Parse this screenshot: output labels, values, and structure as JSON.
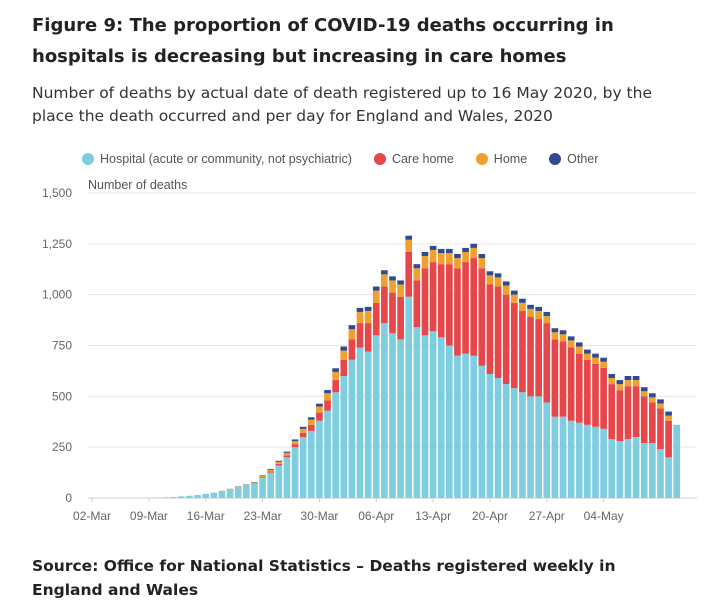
{
  "figure": {
    "title": "Figure 9: The proportion of COVID-19 deaths occurring in hospitals is decreasing but increasing in care homes",
    "subtitle": "Number of deaths by actual date of death registered up to 16 May 2020, by the place the death occurred and per day for England and Wales, 2020",
    "source": "Source: Office for National Statistics – Deaths registered weekly in England and Wales"
  },
  "chart_data": {
    "type": "bar",
    "stacked": true,
    "ylabel": "Number of deaths",
    "ylim": [
      0,
      1500
    ],
    "yticks": [
      0,
      250,
      500,
      750,
      1000,
      1250,
      1500
    ],
    "ytick_labels": [
      "0",
      "250",
      "500",
      "750",
      "1,000",
      "1,250",
      "1,500"
    ],
    "x_tick_labels": [
      "02-Mar",
      "09-Mar",
      "16-Mar",
      "23-Mar",
      "30-Mar",
      "06-Apr",
      "13-Apr",
      "20-Apr",
      "27-Apr",
      "04-May"
    ],
    "grid": true,
    "legend_position": "top",
    "categories": [
      "02-Mar",
      "03-Mar",
      "04-Mar",
      "05-Mar",
      "06-Mar",
      "07-Mar",
      "08-Mar",
      "09-Mar",
      "10-Mar",
      "11-Mar",
      "12-Mar",
      "13-Mar",
      "14-Mar",
      "15-Mar",
      "16-Mar",
      "17-Mar",
      "18-Mar",
      "19-Mar",
      "20-Mar",
      "21-Mar",
      "22-Mar",
      "23-Mar",
      "24-Mar",
      "25-Mar",
      "26-Mar",
      "27-Mar",
      "28-Mar",
      "29-Mar",
      "30-Mar",
      "31-Mar",
      "01-Apr",
      "02-Apr",
      "03-Apr",
      "04-Apr",
      "05-Apr",
      "06-Apr",
      "07-Apr",
      "08-Apr",
      "09-Apr",
      "10-Apr",
      "11-Apr",
      "12-Apr",
      "13-Apr",
      "14-Apr",
      "15-Apr",
      "16-Apr",
      "17-Apr",
      "18-Apr",
      "19-Apr",
      "20-Apr",
      "21-Apr",
      "22-Apr",
      "23-Apr",
      "24-Apr",
      "25-Apr",
      "26-Apr",
      "27-Apr",
      "28-Apr",
      "29-Apr",
      "30-Apr",
      "01-May",
      "02-May",
      "03-May",
      "04-May",
      "05-May",
      "06-May",
      "07-May",
      "08-May",
      "09-May",
      "10-May",
      "11-May",
      "12-May",
      "13-May",
      "14-May",
      "15-May"
    ],
    "series": [
      {
        "name": "Hospital (acute or community, not psychiatric)",
        "color": "#7ecde0",
        "values": [
          0,
          0,
          0,
          0,
          0,
          0,
          0,
          1,
          2,
          3,
          5,
          8,
          11,
          15,
          20,
          26,
          35,
          45,
          55,
          62,
          70,
          100,
          125,
          160,
          200,
          250,
          300,
          330,
          380,
          430,
          520,
          600,
          680,
          740,
          720,
          800,
          860,
          810,
          780,
          990,
          840,
          800,
          820,
          790,
          750,
          700,
          710,
          700,
          650,
          610,
          590,
          560,
          540,
          520,
          500,
          500,
          470,
          400,
          400,
          380,
          370,
          360,
          350,
          340,
          290,
          280,
          290,
          300,
          270,
          270,
          240,
          200,
          360,
          0,
          0
        ]
      },
      {
        "name": "Care home",
        "color": "#e5474b",
        "values": [
          0,
          0,
          0,
          0,
          0,
          0,
          0,
          0,
          0,
          0,
          0,
          0,
          0,
          0,
          0,
          0,
          0,
          0,
          0,
          1,
          2,
          3,
          5,
          8,
          10,
          15,
          20,
          30,
          40,
          50,
          60,
          80,
          100,
          120,
          140,
          160,
          180,
          200,
          210,
          220,
          230,
          330,
          340,
          360,
          400,
          430,
          450,
          480,
          480,
          440,
          450,
          440,
          420,
          400,
          390,
          380,
          390,
          380,
          370,
          360,
          340,
          320,
          310,
          300,
          270,
          250,
          260,
          250,
          230,
          200,
          200,
          180,
          0,
          0,
          0
        ]
      },
      {
        "name": "Home",
        "color": "#f0a02e",
        "values": [
          0,
          0,
          0,
          0,
          0,
          0,
          0,
          0,
          0,
          0,
          0,
          0,
          0,
          0,
          0,
          0,
          1,
          1,
          2,
          3,
          4,
          5,
          8,
          10,
          12,
          15,
          20,
          25,
          30,
          35,
          40,
          45,
          50,
          55,
          60,
          60,
          60,
          60,
          60,
          60,
          60,
          60,
          60,
          55,
          55,
          50,
          50,
          50,
          50,
          45,
          45,
          45,
          40,
          40,
          40,
          40,
          35,
          35,
          35,
          35,
          35,
          30,
          30,
          30,
          30,
          30,
          30,
          30,
          25,
          25,
          25,
          25,
          0,
          0,
          0
        ]
      },
      {
        "name": "Other",
        "color": "#2f4b8f",
        "values": [
          0,
          0,
          0,
          0,
          0,
          0,
          0,
          0,
          0,
          0,
          0,
          0,
          0,
          0,
          0,
          0,
          0,
          0,
          1,
          1,
          2,
          3,
          4,
          5,
          6,
          8,
          10,
          12,
          14,
          16,
          18,
          20,
          20,
          20,
          20,
          20,
          20,
          20,
          20,
          20,
          20,
          20,
          20,
          20,
          20,
          20,
          20,
          20,
          20,
          20,
          20,
          20,
          20,
          20,
          20,
          20,
          20,
          20,
          20,
          20,
          20,
          20,
          20,
          20,
          20,
          20,
          20,
          20,
          20,
          20,
          20,
          20,
          0,
          0,
          0
        ]
      }
    ]
  },
  "legend": {
    "items": [
      {
        "label": "Hospital (acute or community, not psychiatric)",
        "color": "#7ecde0"
      },
      {
        "label": "Care home",
        "color": "#e5474b"
      },
      {
        "label": "Home",
        "color": "#f0a02e"
      },
      {
        "label": "Other",
        "color": "#2f4b8f"
      }
    ]
  }
}
